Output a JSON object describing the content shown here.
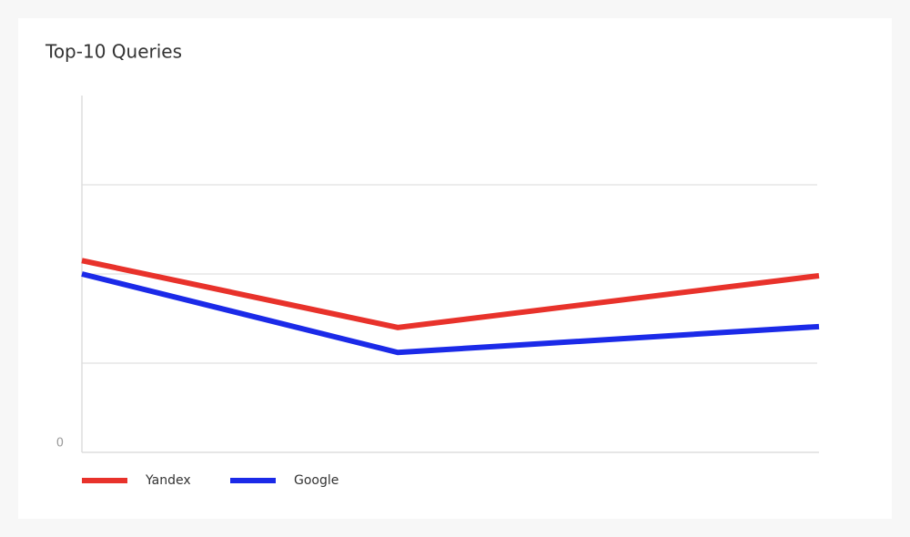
{
  "chart_data": {
    "type": "line",
    "title": "Top-10 Queries",
    "x": [
      0,
      3,
      7
    ],
    "xlim": [
      0,
      7
    ],
    "series": [
      {
        "name": "Yandex",
        "color": "#e8322b",
        "values": [
          2.15,
          1.4,
          1.98
        ]
      },
      {
        "name": "Google",
        "color": "#1b2ae8",
        "values": [
          2.0,
          1.12,
          1.41
        ]
      }
    ],
    "ylim": [
      0,
      4
    ],
    "yticks": [
      0,
      {
        "value": 1,
        "label": null
      },
      {
        "value": 2,
        "label": null
      },
      {
        "value": 3,
        "label": null
      }
    ],
    "grid": true
  }
}
